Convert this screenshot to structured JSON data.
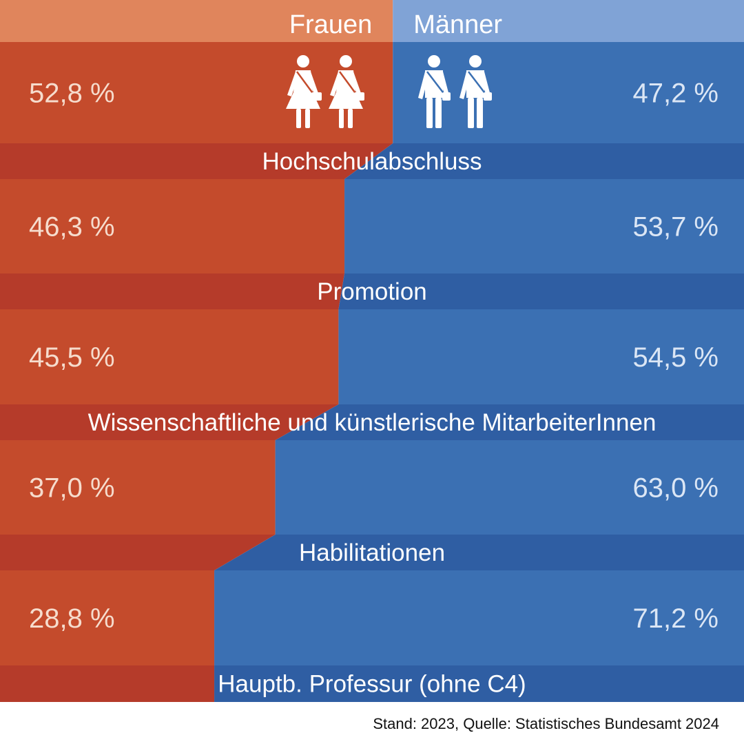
{
  "colors": {
    "women": "#c44b2c",
    "women_dark": "#b53b2a",
    "women_header": "#e0855c",
    "men": "#3b70b3",
    "men_dark": "#2f5ea3",
    "men_header": "#80a3d6"
  },
  "icons": {
    "women": "woman-icon",
    "men": "man-icon"
  },
  "chart_data": {
    "type": "bar",
    "stacked": true,
    "orientation": "horizontal",
    "normalized_to_percent": true,
    "categories": [
      "Hochschulabschluss",
      "Promotion",
      "Wissenschaftliche und künstlerische MitarbeiterInnen",
      "Habilitationen",
      "Hauptb. Professur (ohne C4)"
    ],
    "series": [
      {
        "name": "Frauen",
        "values": [
          52.8,
          46.3,
          45.5,
          37.0,
          28.8
        ],
        "labels": [
          "52,8 %",
          "46,3 %",
          "45,5 %",
          "37,0 %",
          "28,8 %"
        ]
      },
      {
        "name": "Männer",
        "values": [
          47.2,
          53.7,
          54.5,
          63.0,
          71.2
        ],
        "labels": [
          "47,2 %",
          "53,7 %",
          "54,5 %",
          "63,0 %",
          "71,2 %"
        ]
      }
    ],
    "xlim": [
      0,
      100
    ],
    "legend": "top"
  },
  "source": "Stand: 2023, Quelle: Statistisches Bundesamt 2024"
}
